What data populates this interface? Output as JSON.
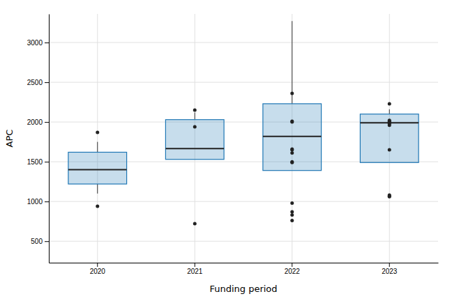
{
  "chart_data": {
    "type": "box",
    "xlabel": "Funding period",
    "ylabel": "APC",
    "categories": [
      "2020",
      "2021",
      "2022",
      "2023"
    ],
    "boxes": [
      {
        "q1": 1220,
        "median": 1400,
        "q3": 1620,
        "whisker_low": 1100,
        "whisker_high": 1750,
        "outliers": [
          940,
          1870
        ]
      },
      {
        "q1": 1530,
        "median": 1665,
        "q3": 2030,
        "whisker_low": 1530,
        "whisker_high": 2120,
        "outliers": [
          720,
          1940,
          2150
        ]
      },
      {
        "q1": 1390,
        "median": 1820,
        "q3": 2230,
        "whisker_low": 1390,
        "whisker_high": 3270,
        "outliers": [
          760,
          830,
          870,
          980,
          1490,
          1500,
          1610,
          1650,
          1660,
          2000,
          2010,
          2360
        ]
      },
      {
        "q1": 1490,
        "median": 1990,
        "q3": 2100,
        "whisker_low": 1490,
        "whisker_high": 2160,
        "outliers": [
          1060,
          1070,
          1080,
          1650,
          1960,
          1980,
          1990,
          2000,
          2010,
          2020,
          2230
        ]
      }
    ],
    "ylim": [
      230,
      3360
    ],
    "yticks": [
      500,
      1000,
      1500,
      2000,
      2500,
      3000
    ],
    "grid": true
  }
}
